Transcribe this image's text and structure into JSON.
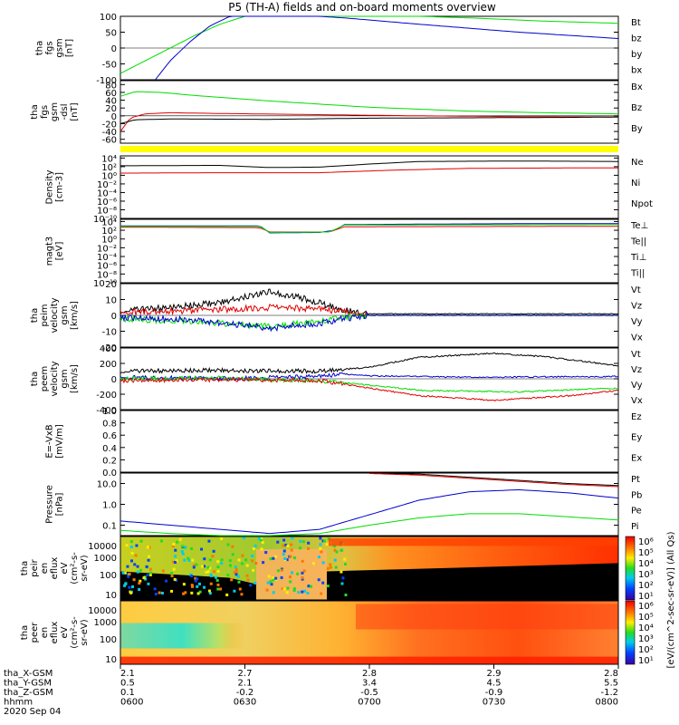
{
  "title": "P5 (TH-A) fields and on-board moments overview",
  "date_label": "2020 Sep 04",
  "colors": {
    "black": "#000000",
    "red": "#e00000",
    "green": "#00dd00",
    "blue": "#0000cc",
    "state_bar": "#ffff00"
  },
  "chart_data": [
    {
      "type": "line",
      "panel": "fgs_a",
      "ylabel": [
        "tha",
        "fgs",
        "gsm",
        "[nT]"
      ],
      "ylim": [
        -100,
        100
      ],
      "ticks": [
        "100",
        "50",
        "0",
        "-50",
        "-100"
      ],
      "tick_values": [
        100,
        50,
        0,
        -50,
        -100
      ],
      "legend": [
        {
          "name": "Bt",
          "color": "black"
        },
        {
          "name": "bz",
          "color": "red"
        },
        {
          "name": "by",
          "color": "green"
        },
        {
          "name": "bx",
          "color": "blue"
        }
      ],
      "series": [
        {
          "name": "by",
          "color": "green",
          "x": [
            0.0,
            0.05,
            0.1,
            0.15,
            0.2,
            0.25,
            0.35,
            0.5,
            0.7,
            0.85,
            1.0
          ],
          "values": [
            -80,
            -40,
            0,
            40,
            75,
            100,
            110,
            105,
            95,
            85,
            78
          ]
        },
        {
          "name": "bx",
          "color": "blue",
          "x": [
            0.07,
            0.1,
            0.14,
            0.18,
            0.22,
            0.3,
            0.45,
            0.6,
            0.8,
            1.0
          ],
          "values": [
            -100,
            -40,
            20,
            70,
            100,
            110,
            95,
            75,
            50,
            30
          ]
        }
      ]
    },
    {
      "type": "line",
      "panel": "fgs_b",
      "ylabel": [
        "tha",
        "fgs",
        "gsm",
        "-dsl",
        "[nT]"
      ],
      "ylim": [
        -70,
        90
      ],
      "ticks": [
        "80",
        "60",
        "40",
        "20",
        "0",
        "-20",
        "-40",
        "-60"
      ],
      "tick_values": [
        80,
        60,
        40,
        20,
        0,
        -20,
        -40,
        -60
      ],
      "legend": [
        {
          "name": "Bx",
          "color": "black"
        },
        {
          "name": "Bz",
          "color": "red"
        },
        {
          "name": "By",
          "color": "green"
        }
      ],
      "series": [
        {
          "name": "By",
          "color": "green",
          "x": [
            0.0,
            0.03,
            0.08,
            0.15,
            0.3,
            0.5,
            0.7,
            0.85,
            1.0
          ],
          "values": [
            50,
            62,
            60,
            52,
            38,
            22,
            12,
            8,
            5
          ]
        },
        {
          "name": "Bz",
          "color": "red",
          "x": [
            0.0,
            0.02,
            0.05,
            0.1,
            0.2,
            0.4,
            0.6,
            0.8,
            1.0
          ],
          "values": [
            -40,
            -5,
            5,
            8,
            6,
            3,
            0,
            -2,
            -3
          ]
        },
        {
          "name": "Bx",
          "color": "black",
          "x": [
            0.0,
            0.03,
            0.1,
            0.3,
            0.5,
            0.7,
            0.9,
            1.0
          ],
          "values": [
            -20,
            -10,
            -8,
            -9,
            -6,
            -5,
            -4,
            -3
          ]
        }
      ]
    },
    {
      "type": "line",
      "panel": "density",
      "ylabel": [
        "Density",
        "[cm-3]"
      ],
      "log": true,
      "ylim": [
        -10,
        4.5
      ],
      "ticks": [
        "10⁴",
        "10²",
        "10⁰",
        "10⁻²",
        "10⁻⁴",
        "10⁻⁶",
        "10⁻⁸",
        "10⁻¹⁰"
      ],
      "tick_values": [
        4,
        2,
        0,
        -2,
        -4,
        -6,
        -8,
        -10
      ],
      "legend": [
        {
          "name": "Ne",
          "color": "red"
        },
        {
          "name": "Ni",
          "color": "black"
        },
        {
          "name": "Npot",
          "color": "blue"
        }
      ],
      "series": [
        {
          "name": "Ni",
          "color": "black",
          "x": [
            0.0,
            0.2,
            0.3,
            0.4,
            0.5,
            0.6,
            0.8,
            1.0
          ],
          "values": [
            2.2,
            2.3,
            1.8,
            1.9,
            2.6,
            3.2,
            3.3,
            3.2
          ]
        },
        {
          "name": "Ne",
          "color": "red",
          "x": [
            0.0,
            0.2,
            0.4,
            0.55,
            0.7,
            0.9,
            1.0
          ],
          "values": [
            0.5,
            0.6,
            0.6,
            1.2,
            1.6,
            1.7,
            1.7
          ]
        }
      ]
    },
    {
      "type": "line",
      "panel": "temperature",
      "ylabel": [
        "magt3",
        "[eV]"
      ],
      "log": true,
      "ylim": [
        -10,
        4.5
      ],
      "ticks": [
        "10⁴",
        "10²",
        "10⁰",
        "10⁻²",
        "10⁻⁴",
        "10⁻⁶",
        "10⁻⁸",
        "10⁻¹⁰"
      ],
      "tick_values": [
        4,
        2,
        0,
        -2,
        -4,
        -6,
        -8,
        -10
      ],
      "legend": [
        {
          "name": "Te⊥",
          "color": "red"
        },
        {
          "name": "Te||",
          "color": "black"
        },
        {
          "name": "Ti⊥",
          "color": "blue"
        },
        {
          "name": "Ti||",
          "color": "green"
        }
      ],
      "series": [
        {
          "name": "Ti⊥",
          "color": "blue",
          "x": [
            0.0,
            0.28,
            0.3,
            0.4,
            0.43,
            0.45,
            0.6,
            0.8,
            1.0
          ],
          "values": [
            3.0,
            3.0,
            1.4,
            1.5,
            2.0,
            3.3,
            3.4,
            3.5,
            3.5
          ]
        },
        {
          "name": "Te⊥",
          "color": "red",
          "x": [
            0.0,
            0.28,
            0.3,
            0.42,
            0.45,
            1.0
          ],
          "values": [
            2.7,
            2.6,
            1.6,
            1.6,
            2.8,
            2.9
          ]
        },
        {
          "name": "Ti||",
          "color": "green",
          "x": [
            0.0,
            0.28,
            0.3,
            0.42,
            0.45,
            1.0
          ],
          "values": [
            2.9,
            2.9,
            1.5,
            1.6,
            3.2,
            3.3
          ]
        }
      ]
    },
    {
      "type": "line",
      "panel": "peim_velocity",
      "ylabel": [
        "tha",
        "peim",
        "velocity",
        "gsm",
        "[km/s]"
      ],
      "ylim": [
        -20,
        20
      ],
      "ticks": [
        "20",
        "10",
        "0",
        "-10",
        "-20"
      ],
      "tick_values": [
        20,
        10,
        0,
        -10,
        -20
      ],
      "legend": [
        {
          "name": "Vt",
          "color": "black"
        },
        {
          "name": "Vz",
          "color": "red"
        },
        {
          "name": "Vy",
          "color": "green"
        },
        {
          "name": "Vx",
          "color": "blue"
        }
      ],
      "series": [
        {
          "name": "Vt",
          "color": "black",
          "x": [
            0.0,
            0.1,
            0.2,
            0.25,
            0.3,
            0.35,
            0.4,
            0.45,
            0.5,
            1.0
          ],
          "values": [
            3,
            5,
            8,
            12,
            15,
            12,
            8,
            3,
            1,
            1
          ]
        },
        {
          "name": "Vz",
          "color": "red",
          "x": [
            0.0,
            0.15,
            0.3,
            0.4,
            0.45,
            0.5,
            1.0
          ],
          "values": [
            2,
            3,
            5,
            4,
            2,
            0,
            0
          ]
        },
        {
          "name": "Vy",
          "color": "green",
          "x": [
            0.0,
            0.15,
            0.3,
            0.4,
            0.45,
            0.5,
            1.0
          ],
          "values": [
            -2,
            -4,
            -7,
            -4,
            -1,
            0,
            0
          ]
        },
        {
          "name": "Vx",
          "color": "blue",
          "x": [
            0.0,
            0.15,
            0.3,
            0.4,
            0.45,
            0.5,
            1.0
          ],
          "values": [
            -1,
            -3,
            -8,
            -5,
            -2,
            0,
            0
          ]
        }
      ]
    },
    {
      "type": "line",
      "panel": "peem_velocity",
      "ylabel": [
        "tha",
        "peem",
        "velocity",
        "gsm",
        "[km/s]"
      ],
      "ylim": [
        -400,
        400
      ],
      "ticks": [
        "400",
        "200",
        "0",
        "-200",
        "-400"
      ],
      "tick_values": [
        400,
        200,
        0,
        -200,
        -400
      ],
      "legend": [
        {
          "name": "Vt",
          "color": "black"
        },
        {
          "name": "Vz",
          "color": "red"
        },
        {
          "name": "Vy",
          "color": "green"
        },
        {
          "name": "Vx",
          "color": "blue"
        }
      ],
      "series": [
        {
          "name": "Vt",
          "color": "black",
          "x": [
            0.0,
            0.2,
            0.4,
            0.5,
            0.6,
            0.75,
            0.85,
            1.0
          ],
          "values": [
            100,
            110,
            100,
            150,
            280,
            330,
            290,
            170
          ]
        },
        {
          "name": "Vx",
          "color": "blue",
          "x": [
            0.0,
            0.2,
            0.4,
            0.45,
            0.5,
            0.7,
            1.0
          ],
          "values": [
            20,
            0,
            30,
            60,
            40,
            20,
            30
          ]
        },
        {
          "name": "Vy",
          "color": "green",
          "x": [
            0.0,
            0.2,
            0.4,
            0.5,
            0.6,
            0.8,
            1.0
          ],
          "values": [
            0,
            10,
            -30,
            -80,
            -150,
            -170,
            -120
          ]
        },
        {
          "name": "Vz",
          "color": "red",
          "x": [
            0.0,
            0.2,
            0.4,
            0.5,
            0.6,
            0.75,
            0.9,
            1.0
          ],
          "values": [
            -20,
            -10,
            -20,
            -120,
            -220,
            -280,
            -220,
            -150
          ]
        }
      ]
    },
    {
      "type": "line",
      "panel": "efield",
      "ylabel": [
        "E=-VxB",
        "[mV/m]"
      ],
      "ylim": [
        0,
        1
      ],
      "ticks": [
        "1.0",
        "0.8",
        "0.6",
        "0.4",
        "0.2",
        "0.0"
      ],
      "tick_values": [
        1.0,
        0.8,
        0.6,
        0.4,
        0.2,
        0.0
      ],
      "legend": [
        {
          "name": "Ez",
          "color": "red"
        },
        {
          "name": "Ey",
          "color": "green"
        },
        {
          "name": "Ex",
          "color": "blue"
        }
      ],
      "series": []
    },
    {
      "type": "line",
      "panel": "pressure",
      "ylabel": [
        "Pressure",
        "[nPa]"
      ],
      "log": true,
      "ylim": [
        -1.5,
        1.5
      ],
      "ticks": [
        "10.0",
        "1.0",
        "0.1"
      ],
      "tick_values": [
        1,
        0,
        -1
      ],
      "legend": [
        {
          "name": "Pt",
          "color": "black"
        },
        {
          "name": "Pb",
          "color": "red"
        },
        {
          "name": "Pe",
          "color": "green"
        },
        {
          "name": "Pi",
          "color": "blue"
        }
      ],
      "series": [
        {
          "name": "Pi",
          "color": "blue",
          "x": [
            0.0,
            0.1,
            0.2,
            0.3,
            0.4,
            0.5,
            0.6,
            0.7,
            0.8,
            0.9,
            1.0
          ],
          "values": [
            -0.8,
            -1.0,
            -1.2,
            -1.4,
            -1.2,
            -0.5,
            0.2,
            0.6,
            0.7,
            0.55,
            0.3
          ]
        },
        {
          "name": "Pe",
          "color": "green",
          "x": [
            0.0,
            0.1,
            0.2,
            0.3,
            0.4,
            0.5,
            0.6,
            0.7,
            0.8,
            0.9,
            1.0
          ],
          "values": [
            -1.25,
            -1.4,
            -1.5,
            -1.5,
            -1.4,
            -1.0,
            -0.65,
            -0.45,
            -0.45,
            -0.6,
            -0.75
          ]
        },
        {
          "name": "Pt",
          "color": "black",
          "x": [
            0.5,
            0.6,
            0.7,
            0.8,
            0.9,
            1.0
          ],
          "values": [
            1.5,
            1.45,
            1.3,
            1.15,
            1.0,
            0.9
          ]
        },
        {
          "name": "Pb",
          "color": "red",
          "x": [
            0.5,
            0.6,
            0.7,
            0.8,
            0.9,
            1.0
          ],
          "values": [
            1.48,
            1.4,
            1.25,
            1.1,
            0.95,
            0.85
          ]
        }
      ]
    },
    {
      "type": "heatmap",
      "panel": "peir_spec",
      "ylabel": [
        "tha",
        "peir",
        "en",
        "eflux",
        "eV",
        "(cm²-s-",
        "sr-eV)"
      ],
      "yticks": [
        "10000",
        "1000",
        "100",
        "10"
      ]
    },
    {
      "type": "heatmap",
      "panel": "peer_spec",
      "ylabel": [
        "tha",
        "peer",
        "en",
        "eflux",
        "eV",
        "(cm²-s-",
        "sr-eV)"
      ],
      "yticks": [
        "10000",
        "1000",
        "100",
        "10"
      ]
    }
  ],
  "colorbar": {
    "top_label": "[eV/(cm^2-sec-sr-eV)] (All Qs)",
    "ticks_top": [
      "10⁶",
      "10⁵",
      "10⁴",
      "10³",
      "10²",
      "10¹"
    ],
    "ticks_bottom": [
      "10⁶",
      "10⁵",
      "10⁴",
      "10³",
      "10²",
      "10¹"
    ],
    "axis_label": "[eV/(cm^2-sec-sr-eV)]"
  },
  "xaxis": {
    "row_labels": [
      "tha_X-GSM",
      "tha_Y-GSM",
      "tha_Z-GSM",
      "hhmm"
    ],
    "columns": [
      [
        "2.1",
        "0.5",
        "0.1",
        "0600"
      ],
      [
        "2.7",
        "2.1",
        "-0.2",
        "0630"
      ],
      [
        "2.8",
        "3.4",
        "-0.5",
        "0700"
      ],
      [
        "2.9",
        "4.5",
        "-0.9",
        "0730"
      ],
      [
        "2.8",
        "5.5",
        "-1.2",
        "0800"
      ]
    ]
  }
}
